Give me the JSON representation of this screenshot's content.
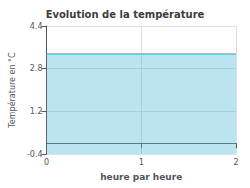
{
  "chart_data": {
    "type": "area",
    "title": "Evolution de la température",
    "xlabel": "heure par heure",
    "ylabel": "Température en °C",
    "x": [
      0,
      2
    ],
    "values": [
      3.35,
      3.35
    ],
    "color": "#5ab8d8",
    "xlim": [
      0,
      2
    ],
    "xticks": [
      0,
      1,
      2
    ],
    "ylim": [
      -0.4,
      4.4
    ],
    "yticks": [
      -0.4,
      1.2,
      2.8,
      4.4
    ],
    "grid": true
  }
}
